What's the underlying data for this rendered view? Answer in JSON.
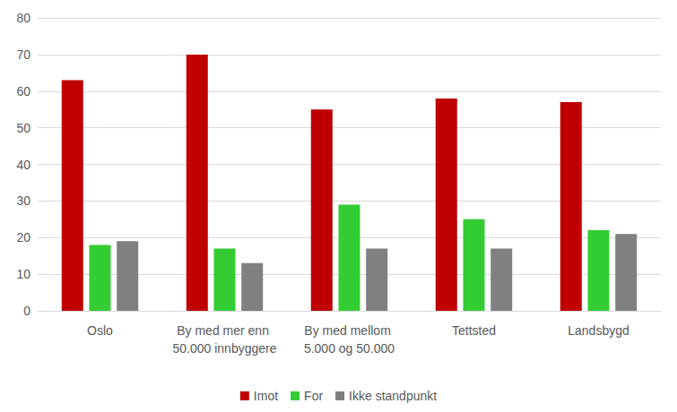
{
  "chart_data": {
    "type": "bar",
    "categories": [
      "Oslo",
      "By med mer enn 50.000 innbyggere",
      "By med mellom 5.000 og 50.000",
      "Tettsted",
      "Landsbygd"
    ],
    "series": [
      {
        "name": "Imot",
        "color": "#c00000",
        "values": [
          63,
          70,
          55,
          58,
          57
        ]
      },
      {
        "name": "For",
        "color": "#33cc33",
        "values": [
          18,
          17,
          29,
          25,
          22
        ]
      },
      {
        "name": "Ikke standpunkt",
        "color": "#808080",
        "values": [
          19,
          13,
          17,
          17,
          21
        ]
      }
    ],
    "ylim": [
      0,
      80
    ],
    "yticks": [
      0,
      10,
      20,
      30,
      40,
      50,
      60,
      70,
      80
    ],
    "grid": true,
    "legend": "bottom"
  }
}
